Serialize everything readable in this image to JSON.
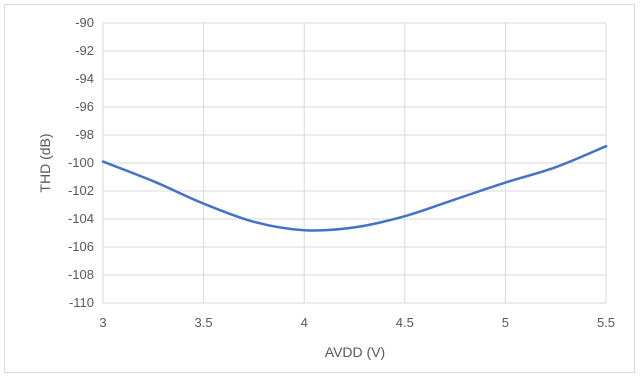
{
  "chart_data": {
    "type": "line",
    "title": "",
    "xlabel": "AVDD (V)",
    "ylabel": "THD (dB)",
    "xlim": [
      3,
      5.5
    ],
    "ylim": [
      -110,
      -90
    ],
    "x_ticks": [
      3,
      3.5,
      4,
      4.5,
      5,
      5.5
    ],
    "x_tick_labels": [
      "3",
      "3.5",
      "4",
      "4.5",
      "5",
      "5.5"
    ],
    "y_ticks": [
      -90,
      -92,
      -94,
      -96,
      -98,
      -100,
      -102,
      -104,
      -106,
      -108,
      -110
    ],
    "y_tick_labels": [
      "-90",
      "-92",
      "-94",
      "-96",
      "-98",
      "-100",
      "-102",
      "-104",
      "-106",
      "-108",
      "-110"
    ],
    "grid": true,
    "legend": "none",
    "series": [
      {
        "color": "#4472c4",
        "x": [
          3,
          3.25,
          3.5,
          3.75,
          4,
          4.25,
          4.5,
          4.75,
          5,
          5.25,
          5.5
        ],
        "y": [
          -99.9,
          -101.3,
          -102.9,
          -104.2,
          -104.8,
          -104.6,
          -103.8,
          -102.6,
          -101.4,
          -100.3,
          -98.8
        ]
      }
    ]
  }
}
